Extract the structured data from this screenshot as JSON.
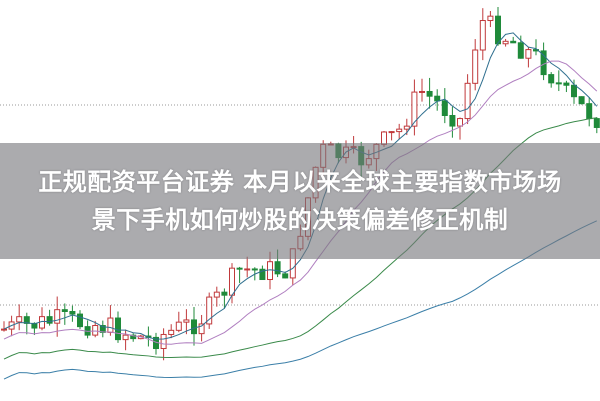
{
  "headline": {
    "line1": "正规配资平台证券 本月以来全球主要指数市场场",
    "line2": "景下手机如何炒股的决策偏差修正机制"
  },
  "colors": {
    "up_candle": "#c0393b",
    "down_candle": "#1f8a3a",
    "ma_short": "#2f6f8f",
    "ma_mid": "#b07fc0",
    "ma_long": "#3a8a4a",
    "ma_longest": "#3b7fa8",
    "banner": "#78787d"
  },
  "chart_data": {
    "type": "candlestick",
    "grid": "dotted horizontal",
    "axes": "none"
  }
}
